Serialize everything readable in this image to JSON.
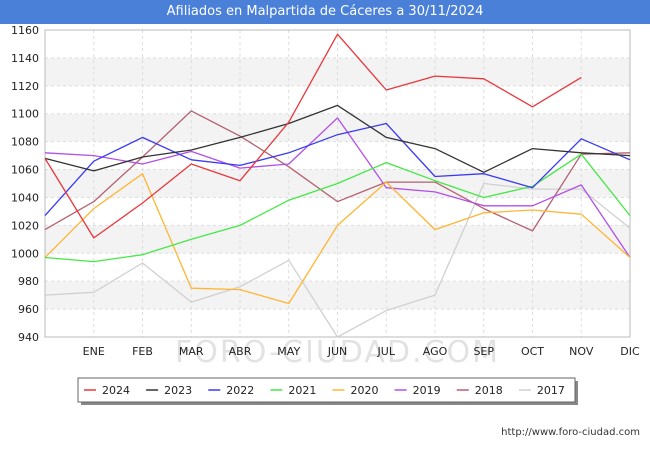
{
  "header": {
    "title": "Afiliados en Malpartida de Cáceres a 30/11/2024"
  },
  "watermark": "FORO-CIUDAD.COM",
  "source": "http://www.foro-ciudad.com",
  "chart_data": {
    "type": "line",
    "title": "Afiliados en Malpartida de Cáceres a 30/11/2024",
    "xlabel": "",
    "ylabel": "",
    "ylim": [
      940,
      1160
    ],
    "yticks": [
      940,
      960,
      980,
      1000,
      1020,
      1040,
      1060,
      1080,
      1100,
      1120,
      1140,
      1160
    ],
    "categories": [
      "",
      "ENE",
      "FEB",
      "MAR",
      "ABR",
      "MAY",
      "JUN",
      "JUL",
      "AGO",
      "SEP",
      "OCT",
      "NOV",
      "DIC"
    ],
    "legend_position": "bottom",
    "series": [
      {
        "name": "2024",
        "color": "#e8383d",
        "values": [
          1068,
          1011,
          1036,
          1064,
          1052,
          1094,
          1157,
          1117,
          1127,
          1125,
          1105,
          1126,
          null
        ]
      },
      {
        "name": "2023",
        "color": "#333333",
        "values": [
          1068,
          1059,
          1069,
          1074,
          1083,
          1093,
          1106,
          1083,
          1075,
          1058,
          1075,
          1072,
          1070
        ]
      },
      {
        "name": "2022",
        "color": "#3a3af0",
        "values": [
          1027,
          1066,
          1083,
          1067,
          1063,
          1072,
          1085,
          1093,
          1055,
          1057,
          1047,
          1082,
          1067
        ]
      },
      {
        "name": "2021",
        "color": "#44e844",
        "values": [
          997,
          994,
          999,
          1010,
          1020,
          1038,
          1050,
          1065,
          1052,
          1040,
          1048,
          1071,
          1027
        ]
      },
      {
        "name": "2020",
        "color": "#ffb533",
        "values": [
          997,
          1032,
          1057,
          975,
          974,
          964,
          1020,
          1051,
          1017,
          1029,
          1031,
          1028,
          997
        ]
      },
      {
        "name": "2019",
        "color": "#b34fe8",
        "values": [
          1072,
          1070,
          1064,
          1073,
          1061,
          1064,
          1097,
          1047,
          1044,
          1034,
          1034,
          1049,
          997
        ]
      },
      {
        "name": "2018",
        "color": "#b56070",
        "values": [
          1017,
          1037,
          1069,
          1102,
          1084,
          1062,
          1037,
          1051,
          1051,
          1032,
          1016,
          1071,
          1072
        ]
      },
      {
        "name": "2017",
        "color": "#d0d0d0",
        "values": [
          970,
          972,
          993,
          965,
          976,
          995,
          940,
          959,
          970,
          1050,
          1046,
          1046,
          1018
        ]
      }
    ]
  }
}
